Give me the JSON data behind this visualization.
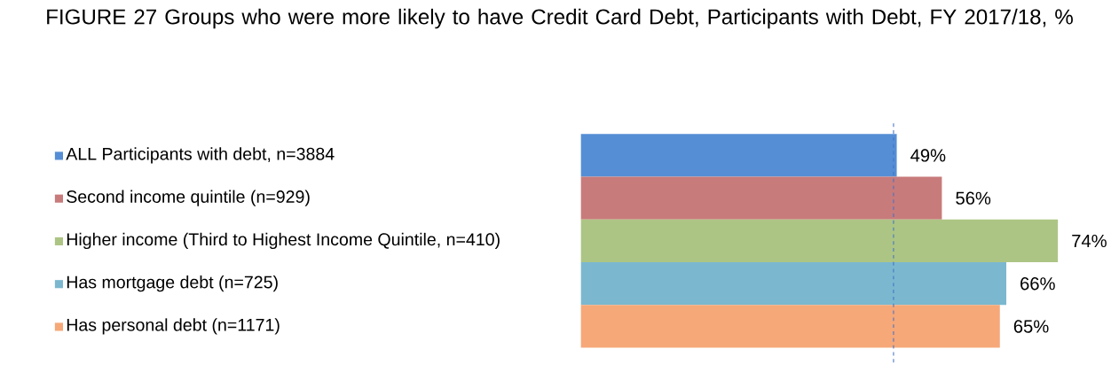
{
  "chart_data": {
    "type": "bar",
    "orientation": "horizontal",
    "title": "FIGURE 27 Groups who were more likely to have Credit Card Debt, Participants with Debt, FY 2017/18, %",
    "categories": [
      "ALL Participants with debt, n=3884",
      "Second income quintile (n=929)",
      "Higher income (Third to Highest Income Quintile, n=410)",
      "Has mortgage debt (n=725)",
      "Has personal debt (n=1171)"
    ],
    "values": [
      49,
      56,
      74,
      66,
      65
    ],
    "value_labels": [
      "49%",
      "56%",
      "74%",
      "66%",
      "65%"
    ],
    "colors": [
      "#558ed5",
      "#c87b7b",
      "#adc584",
      "#7bb8cf",
      "#f6a878"
    ],
    "ref_lines": [
      {
        "axis": "x",
        "value": 48.5,
        "color": "#4472c4",
        "line_style": "dashed"
      }
    ]
  }
}
